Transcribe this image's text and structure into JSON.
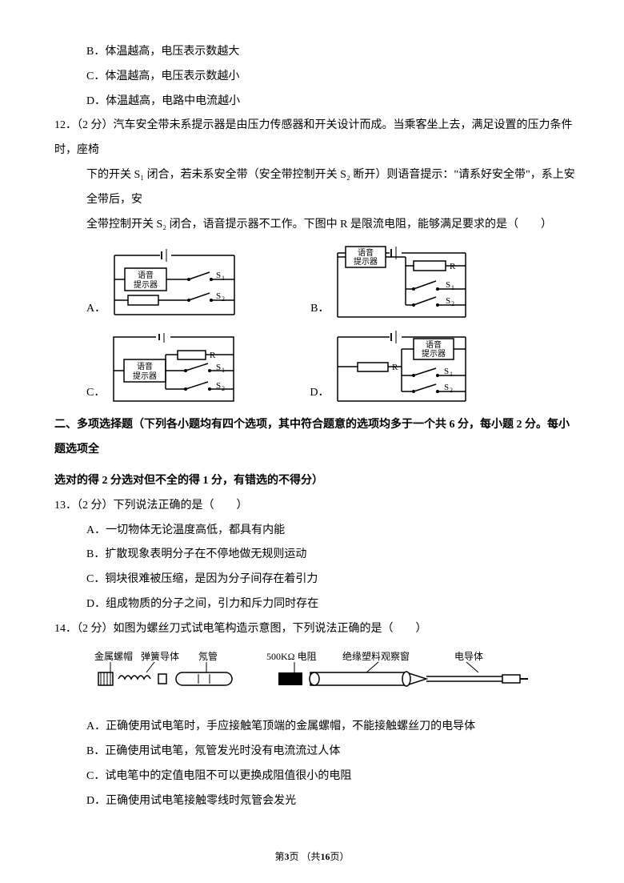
{
  "q11_opts": {
    "B": "B．体温越高，电压表示数越大",
    "C": "C．体温越高，电压表示数越小",
    "D": "D．体温越高，电路中电流越小"
  },
  "q12": {
    "num": "12．（2 分）汽车安全带未系提示器是由压力传感器和开关设计而成。当乘客坐上去，满足设置的压力条件时，座椅",
    "l2": "下的开关 S₁ 闭合，若未系安全带（安全带控制开关 S₂ 断开）则语音提示：\"请系好安全带\"，系上安全带后，安",
    "l3": "全带控制开关 S₂ 闭合，语音提示器不工作。下图中 R 是限流电阻，能够满足要求的是（　　）",
    "labelA": "A．",
    "labelB": "B．",
    "labelC": "C．",
    "labelD": "D．",
    "speaker": "语音\n提示器",
    "R": "R",
    "S1": "S₁",
    "S2": "S₂"
  },
  "section2": {
    "l1": "二、多项选择题（下列各小题均有四个选项，其中符合题意的选项均多于一个共 6 分，每小题 2 分。每小题选项全",
    "l2": "选对的得 2 分选对但不全的得 1 分，有错选的不得分）"
  },
  "q13": {
    "num": "13．（2 分）下列说法正确的是（　　）",
    "A": "A．一切物体无论温度高低，都具有内能",
    "B": "B．扩散现象表明分子在不停地做无规则运动",
    "C": "C．铜块很难被压缩，是因为分子间存在着引力",
    "D": "D．组成物质的分子之间，引力和斥力同时存在"
  },
  "q14": {
    "num": "14．（2 分）如图为螺丝刀式试电笔构造示意图，下列说法正确的是（　　）",
    "labels": {
      "l1": "金属螺帽",
      "l2": "弹簧导体",
      "l3": "氖管",
      "l4": "500KΩ 电阻",
      "l5": "绝缘塑料观察窗",
      "l6": "电导体"
    },
    "A": "A．正确使用试电笔时，手应接触笔顶端的金属螺帽，不能接触螺丝刀的电导体",
    "B": "B．正确使用试电笔，氖管发光时没有电流流过人体",
    "C": "C．试电笔中的定值电阻不可以更换成阻值很小的电阻",
    "D": "D．正确使用试电笔接触零线时氖管会发光"
  },
  "footer": {
    "pre": "第",
    "cur": "3",
    "mid": "页 （共",
    "total": "16",
    "post": "页）"
  },
  "colors": {
    "text": "#000000",
    "bg": "#ffffff",
    "stroke": "#000000"
  }
}
